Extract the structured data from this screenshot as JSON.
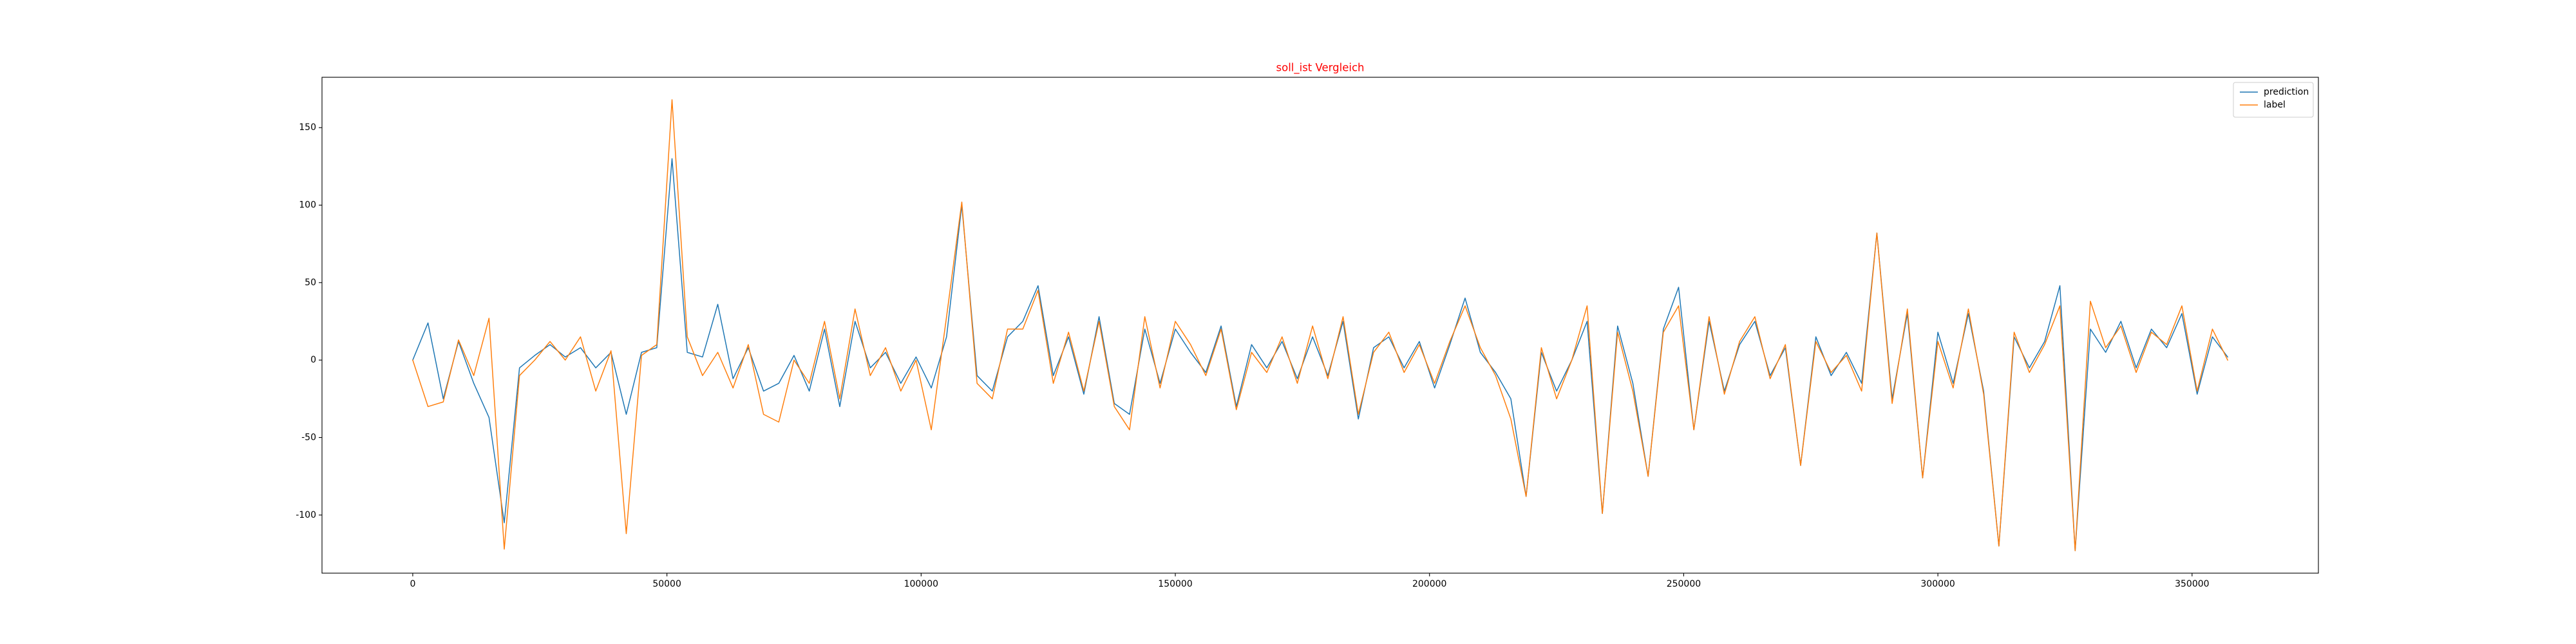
{
  "chart_data": {
    "type": "line",
    "title": "soll_ist Vergleich",
    "title_color": "#ff0000",
    "x": [
      0,
      3000,
      6000,
      9000,
      12000,
      15000,
      18000,
      21000,
      24000,
      27000,
      30000,
      33000,
      36000,
      39000,
      42000,
      45000,
      48000,
      51000,
      54000,
      57000,
      60000,
      63000,
      66000,
      69000,
      72000,
      75000,
      78000,
      81000,
      84000,
      87000,
      90000,
      93000,
      96000,
      99000,
      102000,
      105000,
      108000,
      111000,
      114000,
      117000,
      120000,
      123000,
      126000,
      129000,
      132000,
      135000,
      138000,
      141000,
      144000,
      147000,
      150000,
      153000,
      156000,
      159000,
      162000,
      165000,
      168000,
      171000,
      174000,
      177000,
      180000,
      183000,
      186000,
      189000,
      192000,
      195000,
      198000,
      201000,
      204000,
      207000,
      210000,
      213000,
      216000,
      219000,
      222000,
      225000,
      228000,
      231000,
      234000,
      237000,
      240000,
      243000,
      246000,
      249000,
      252000,
      255000,
      258000,
      261000,
      264000,
      267000,
      270000,
      273000,
      276000,
      279000,
      282000,
      285000,
      288000,
      291000,
      294000,
      297000,
      300000,
      303000,
      306000,
      309000,
      312000,
      315000,
      318000,
      321000,
      324000,
      327000,
      330000,
      333000,
      336000,
      339000,
      342000,
      345000,
      348000,
      351000,
      354000,
      357000
    ],
    "series": [
      {
        "name": "prediction",
        "color": "#1f77b4",
        "values": [
          0,
          24,
          -25,
          12,
          -15,
          -37,
          -105,
          -5,
          3,
          10,
          2,
          8,
          -5,
          5,
          -35,
          5,
          8,
          130,
          5,
          2,
          36,
          -12,
          8,
          -20,
          -15,
          3,
          -20,
          20,
          -30,
          25,
          -5,
          5,
          -15,
          2,
          -18,
          15,
          100,
          -10,
          -20,
          15,
          25,
          48,
          -10,
          15,
          -22,
          28,
          -28,
          -35,
          20,
          -15,
          20,
          5,
          -8,
          22,
          -30,
          10,
          -5,
          12,
          -12,
          15,
          -10,
          25,
          -38,
          8,
          15,
          -5,
          12,
          -18,
          10,
          40,
          5,
          -8,
          -25,
          -88,
          5,
          -20,
          0,
          25,
          -99,
          22,
          -15,
          -75,
          20,
          47,
          -45,
          25,
          -20,
          10,
          25,
          -10,
          8,
          -68,
          15,
          -10,
          5,
          -15,
          82,
          -25,
          30,
          -76,
          18,
          -15,
          30,
          -20,
          -120,
          15,
          -5,
          12,
          48,
          -123,
          20,
          5,
          25,
          -5,
          20,
          8,
          30,
          -22,
          15,
          2
        ]
      },
      {
        "name": "label",
        "color": "#ff7f0e",
        "values": [
          0,
          -30,
          -27,
          13,
          -10,
          27,
          -122,
          -10,
          0,
          12,
          0,
          15,
          -20,
          6,
          -112,
          3,
          10,
          168,
          15,
          -10,
          5,
          -18,
          10,
          -35,
          -40,
          0,
          -15,
          25,
          -25,
          33,
          -10,
          8,
          -20,
          0,
          -45,
          28,
          102,
          -15,
          -25,
          20,
          20,
          45,
          -15,
          18,
          -20,
          25,
          -30,
          -45,
          28,
          -18,
          25,
          10,
          -10,
          20,
          -32,
          5,
          -8,
          15,
          -15,
          22,
          -12,
          28,
          -35,
          5,
          18,
          -8,
          10,
          -15,
          12,
          35,
          8,
          -10,
          -38,
          -88,
          8,
          -25,
          0,
          35,
          -99,
          18,
          -20,
          -75,
          18,
          35,
          -45,
          28,
          -22,
          12,
          28,
          -12,
          10,
          -68,
          12,
          -8,
          3,
          -20,
          82,
          -28,
          33,
          -76,
          12,
          -18,
          33,
          -22,
          -120,
          18,
          -8,
          10,
          35,
          -123,
          38,
          8,
          22,
          -8,
          18,
          10,
          35,
          -20,
          20,
          0
        ]
      }
    ],
    "xlim": [
      -17850,
      374850
    ],
    "ylim": [
      -137.5,
      182.5
    ],
    "xticks": [
      0,
      50000,
      100000,
      150000,
      200000,
      250000,
      300000,
      350000
    ],
    "yticks": [
      -100,
      -50,
      0,
      50,
      100,
      150
    ],
    "legend": "upper right"
  }
}
